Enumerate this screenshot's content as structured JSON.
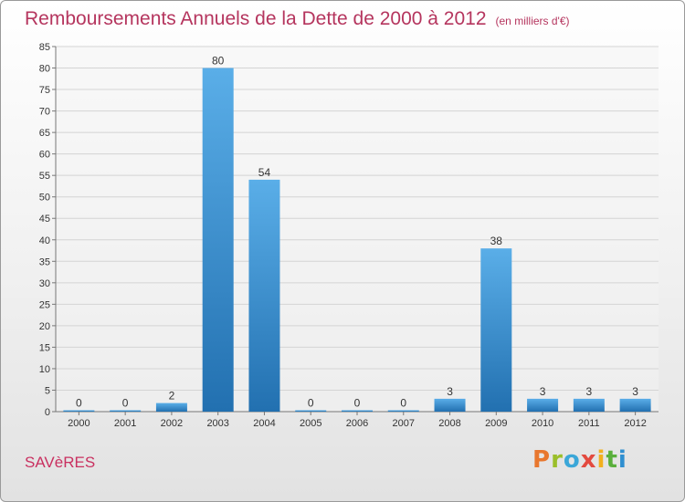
{
  "header": {
    "title": "Remboursements Annuels de la Dette de 2000 à 2012",
    "unit": "(en milliers d'€)"
  },
  "footer": {
    "commune": "SAVèRES",
    "logo_letters": [
      "P",
      "r",
      "o",
      "x",
      "i",
      "t",
      "i"
    ],
    "logo_colors": [
      "#e8772e",
      "#9bbf2a",
      "#3ba7d8",
      "#e34a3f",
      "#f2b01e",
      "#5aaf3c",
      "#2f8fd0"
    ]
  },
  "colors": {
    "bar_top": "#5aaee8",
    "bar_bottom": "#2270b0",
    "title": "#b5355e"
  },
  "chart_data": {
    "type": "bar",
    "title": "Remboursements Annuels de la Dette de 2000 à 2012",
    "xlabel": "",
    "ylabel": "",
    "categories": [
      "2000",
      "2001",
      "2002",
      "2003",
      "2004",
      "2005",
      "2006",
      "2007",
      "2008",
      "2009",
      "2010",
      "2011",
      "2012"
    ],
    "values": [
      0,
      0,
      2,
      80,
      54,
      0,
      0,
      0,
      3,
      38,
      3,
      3,
      3
    ],
    "data_labels": [
      "0",
      "0",
      "2",
      "80",
      "54",
      "0",
      "0",
      "0",
      "3",
      "38",
      "3",
      "3",
      "3"
    ],
    "ylim": [
      0,
      85
    ],
    "yticks": [
      0,
      5,
      10,
      15,
      20,
      25,
      30,
      35,
      40,
      45,
      50,
      55,
      60,
      65,
      70,
      75,
      80,
      85
    ],
    "grid": true
  }
}
